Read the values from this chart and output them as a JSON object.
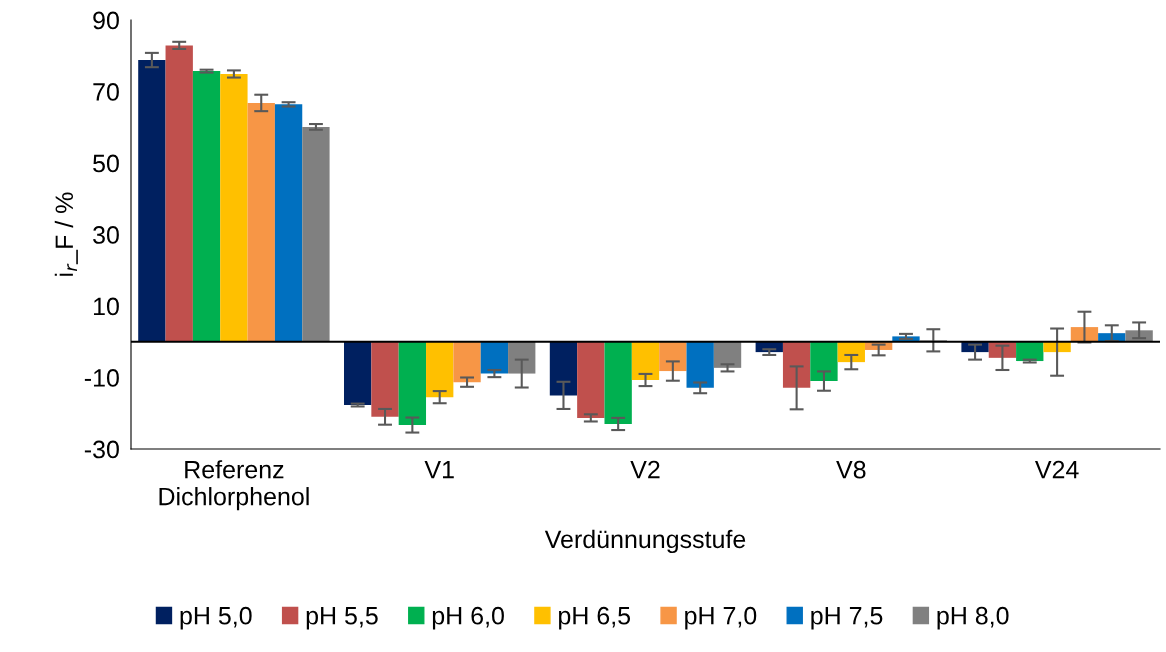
{
  "chart_data": {
    "type": "bar",
    "xlabel": "Verdünnungsstufe",
    "ylabel": "i$_{r}$_F / %",
    "categories": [
      "Referenz\nDichlorphenol",
      "V1",
      "V2",
      "V8",
      "V24"
    ],
    "ylim": [
      -30,
      90
    ],
    "yticks": [
      -30,
      -10,
      10,
      30,
      50,
      70,
      90
    ],
    "grid": false,
    "legend": "bottom",
    "series": [
      {
        "name": "pH 5,0",
        "color": "#002060",
        "values": [
          78.8,
          -17.7,
          -15.0,
          -2.9,
          -2.9
        ],
        "errors": [
          2,
          0.4,
          3.8,
          0.8,
          2.1
        ]
      },
      {
        "name": "pH 5,5",
        "color": "#c0504d",
        "values": [
          82.9,
          -21.0,
          -21.3,
          -12.9,
          -4.5
        ],
        "errors": [
          1,
          2.2,
          1,
          6,
          3.4
        ]
      },
      {
        "name": "pH 6,0",
        "color": "#00b050",
        "values": [
          75.7,
          -23.3,
          -23.0,
          -11.0,
          -5.4
        ],
        "errors": [
          0.4,
          2.1,
          1.7,
          2.7,
          0.4
        ]
      },
      {
        "name": "pH 6,5",
        "color": "#ffc000",
        "values": [
          74.9,
          -15.5,
          -10.7,
          -5.7,
          -2.9
        ],
        "errors": [
          1,
          1.7,
          1.7,
          2,
          6.6
        ]
      },
      {
        "name": "pH 7,0",
        "color": "#f79646",
        "values": [
          66.8,
          -11.3,
          -8.2,
          -2.3,
          4.1
        ],
        "errors": [
          2.3,
          1.3,
          2.7,
          1.5,
          4.3
        ]
      },
      {
        "name": "pH 7,5",
        "color": "#0070c0",
        "values": [
          66.4,
          -8.9,
          -12.9,
          1.5,
          2.4
        ],
        "errors": [
          0.6,
          1,
          1.5,
          0.7,
          2.2
        ]
      },
      {
        "name": "pH 8,0",
        "color": "#808080",
        "values": [
          60.1,
          -8.9,
          -7.3,
          0.4,
          3.2
        ],
        "errors": [
          0.8,
          3.9,
          1,
          3.1,
          2.2
        ]
      }
    ]
  }
}
